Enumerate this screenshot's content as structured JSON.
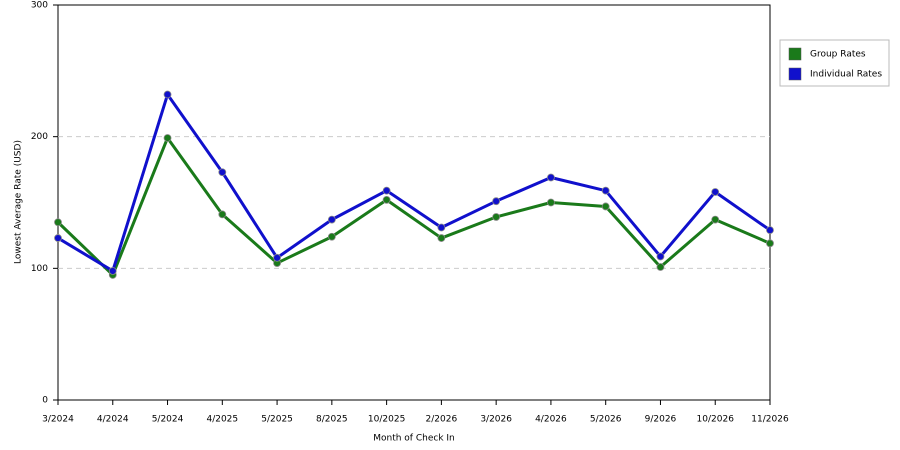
{
  "chart_data": {
    "type": "line",
    "x_label": "Month of Check In",
    "y_label": "Lowest Average Rate (USD)",
    "categories": [
      "3/2024",
      "4/2024",
      "5/2024",
      "4/2025",
      "5/2025",
      "8/2025",
      "10/2025",
      "2/2026",
      "3/2026",
      "4/2026",
      "5/2026",
      "9/2026",
      "10/2026",
      "11/2026"
    ],
    "series": [
      {
        "name": "Group Rates",
        "color": "#1a7a1a",
        "values": [
          135,
          95,
          199,
          141,
          104,
          124,
          152,
          123,
          139,
          150,
          147,
          101,
          137,
          119
        ]
      },
      {
        "name": "Individual Rates",
        "color": "#1010cc",
        "values": [
          123,
          98,
          232,
          173,
          108,
          137,
          159,
          131,
          151,
          169,
          159,
          109,
          158,
          129
        ]
      }
    ],
    "ylim": [
      0,
      300
    ],
    "yticks": [
      0,
      100,
      200,
      300
    ],
    "grid": true,
    "legend": "right"
  }
}
